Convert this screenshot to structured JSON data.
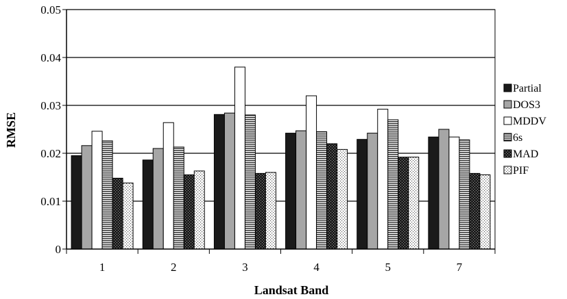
{
  "chart_data": {
    "type": "bar",
    "title": "",
    "xlabel": "Landsat Band",
    "ylabel": "RMSE",
    "ylim": [
      0,
      0.05
    ],
    "yticks": [
      "0",
      "0.01",
      "0.02",
      "0.03",
      "0.04",
      "0.05"
    ],
    "grid": "horizontal major gridlines",
    "legend_position": "right",
    "categories": [
      "1",
      "2",
      "3",
      "4",
      "5",
      "7"
    ],
    "series": [
      {
        "name": "Partial",
        "pattern": "solid-dark",
        "color": "#1a1a1a",
        "values": [
          0.0195,
          0.0186,
          0.0281,
          0.0242,
          0.0229,
          0.0234
        ]
      },
      {
        "name": "DOS3",
        "pattern": "solid-grey",
        "color": "#a6a6a6",
        "values": [
          0.0216,
          0.021,
          0.0284,
          0.0247,
          0.0242,
          0.025
        ]
      },
      {
        "name": "MDDV",
        "pattern": "white",
        "color": "#ffffff",
        "values": [
          0.0246,
          0.0264,
          0.038,
          0.032,
          0.0292,
          0.0234
        ]
      },
      {
        "name": "6s",
        "pattern": "horizontal-stripes",
        "color": "#555555",
        "values": [
          0.0226,
          0.0213,
          0.028,
          0.0245,
          0.027,
          0.0228
        ]
      },
      {
        "name": "MAD",
        "pattern": "dark-dotted",
        "color": "#2b2b2b",
        "values": [
          0.0148,
          0.0155,
          0.0158,
          0.022,
          0.0192,
          0.0158
        ]
      },
      {
        "name": "PIF",
        "pattern": "light-dotted",
        "color": "#d9d9d9",
        "values": [
          0.0138,
          0.0163,
          0.016,
          0.0208,
          0.0192,
          0.0155
        ]
      }
    ]
  }
}
